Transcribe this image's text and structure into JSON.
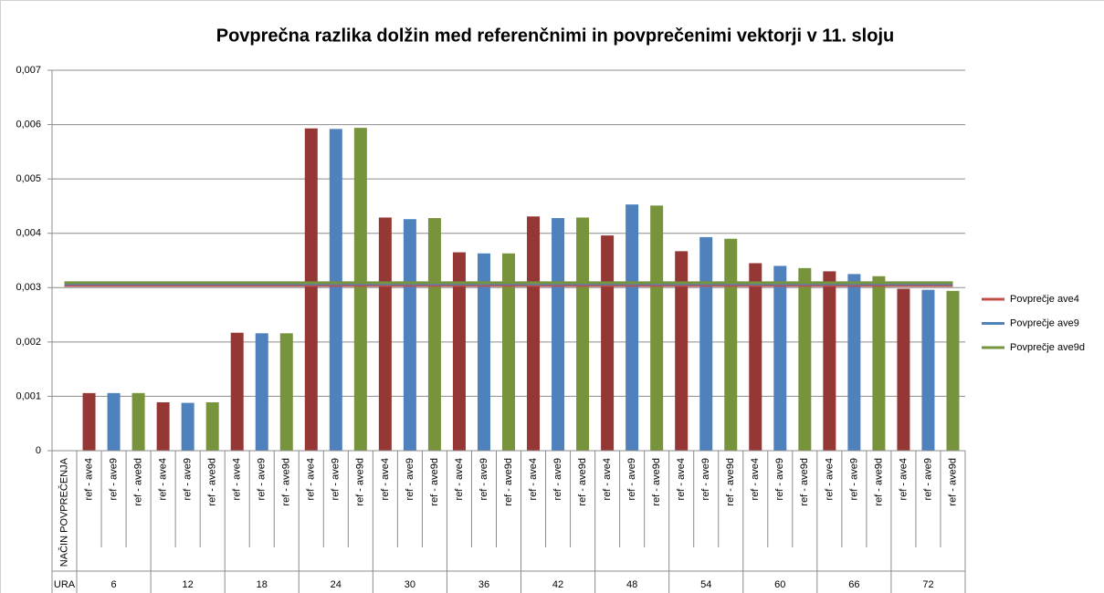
{
  "chart_data": {
    "type": "bar",
    "title": "Povprečna razlika dolžin med referenčnimi in povprečenimi vektorji v 11. sloju",
    "categories": [
      "NAČIN POVPREČENJA",
      "ref - ave4",
      "ref - ave9",
      "ref - ave9d",
      "ref - ave4",
      "ref - ave9",
      "ref - ave9d",
      "ref - ave4",
      "ref - ave9",
      "ref - ave9d",
      "ref - ave4",
      "ref - ave9",
      "ref - ave9d",
      "ref - ave4",
      "ref - ave9",
      "ref - ave9d",
      "ref - ave4",
      "ref - ave9",
      "ref - ave9d",
      "ref - ave4",
      "ref - ave9",
      "ref - ave9d",
      "ref - ave4",
      "ref - ave9",
      "ref - ave9d",
      "ref - ave4",
      "ref - ave9",
      "ref - ave9d",
      "ref - ave4",
      "ref - ave9",
      "ref - ave9d",
      "ref - ave4",
      "ref - ave9",
      "ref - ave9d",
      "ref - ave4",
      "ref - ave9",
      "ref - ave9d"
    ],
    "group_labels": [
      "URA",
      "6",
      "12",
      "18",
      "24",
      "30",
      "36",
      "42",
      "48",
      "54",
      "60",
      "66",
      "72"
    ],
    "values": [
      null,
      0.00106,
      0.00106,
      0.00106,
      0.00089,
      0.00088,
      0.00089,
      0.00217,
      0.00216,
      0.00216,
      0.00593,
      0.00592,
      0.00594,
      0.00429,
      0.00426,
      0.00428,
      0.00365,
      0.00363,
      0.00363,
      0.00431,
      0.00428,
      0.00429,
      0.00396,
      0.00453,
      0.00451,
      0.00367,
      0.00393,
      0.0039,
      0.00345,
      0.0034,
      0.00336,
      0.0033,
      0.00325,
      0.00321,
      0.00298,
      0.00296,
      0.00294
    ],
    "bar_colors": [
      "#953735",
      "#4f81bd",
      "#77933c"
    ],
    "series": [
      {
        "name": "Povprečje ave4",
        "color": "#c0504d",
        "value": 0.00304
      },
      {
        "name": "Povprečje ave9",
        "color": "#4f81bd",
        "value": 0.00307
      },
      {
        "name": "Povprečje ave9d",
        "color": "#77933c",
        "value": 0.00309
      }
    ],
    "ylim": [
      0,
      0.007
    ],
    "yticks": [
      0,
      {
        "value": 0.001,
        "label": "0,001"
      },
      {
        "value": 0.002,
        "label": "0,002"
      },
      {
        "value": 0.003,
        "label": "0,003"
      },
      {
        "value": 0.004,
        "label": "0,004"
      },
      {
        "value": 0.005,
        "label": "0,005"
      },
      {
        "value": 0.006,
        "label": "0,006"
      },
      {
        "value": 0.007,
        "label": "0,007"
      }
    ],
    "grid": true
  }
}
